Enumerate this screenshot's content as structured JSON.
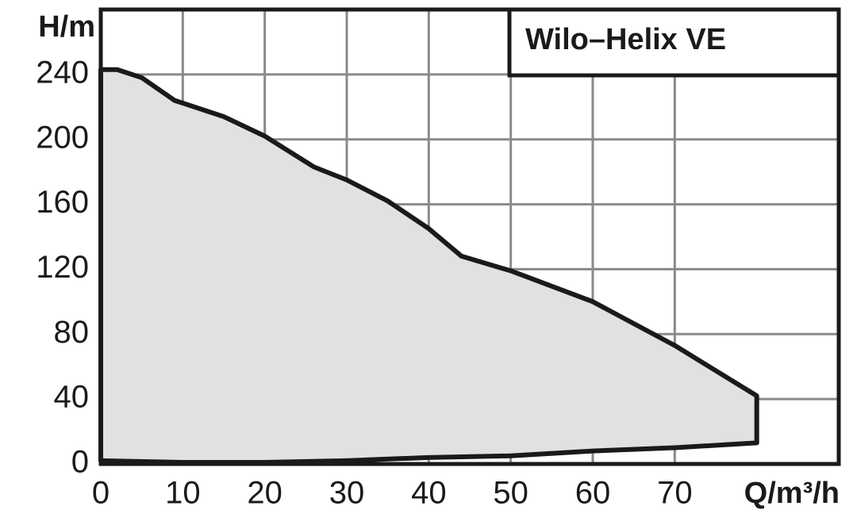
{
  "chart_data": {
    "type": "area",
    "title": "Wilo–Helix VE",
    "x_label": "Q/m³/h",
    "y_label": "H/m",
    "xlim": [
      0,
      90
    ],
    "ylim": [
      0,
      280
    ],
    "xticks": [
      0,
      10,
      20,
      30,
      40,
      50,
      60,
      70
    ],
    "yticks": [
      0,
      40,
      80,
      120,
      160,
      200,
      240
    ],
    "grid": true,
    "color": "#e1e1e4",
    "line_color": "#1a1a1a",
    "series": [
      {
        "x": [
          0,
          2,
          5,
          9,
          15,
          20,
          26,
          30,
          35,
          40,
          44,
          50,
          60,
          70,
          80
        ],
        "values": [
          243,
          243,
          238,
          224,
          214,
          202,
          183,
          175,
          162,
          145,
          128,
          119,
          100,
          73,
          42
        ]
      },
      {
        "x": [
          80,
          70,
          60,
          50,
          40,
          30,
          20,
          10,
          0
        ],
        "values": [
          13,
          10,
          8,
          5,
          4,
          2,
          1,
          1,
          2
        ]
      }
    ]
  }
}
